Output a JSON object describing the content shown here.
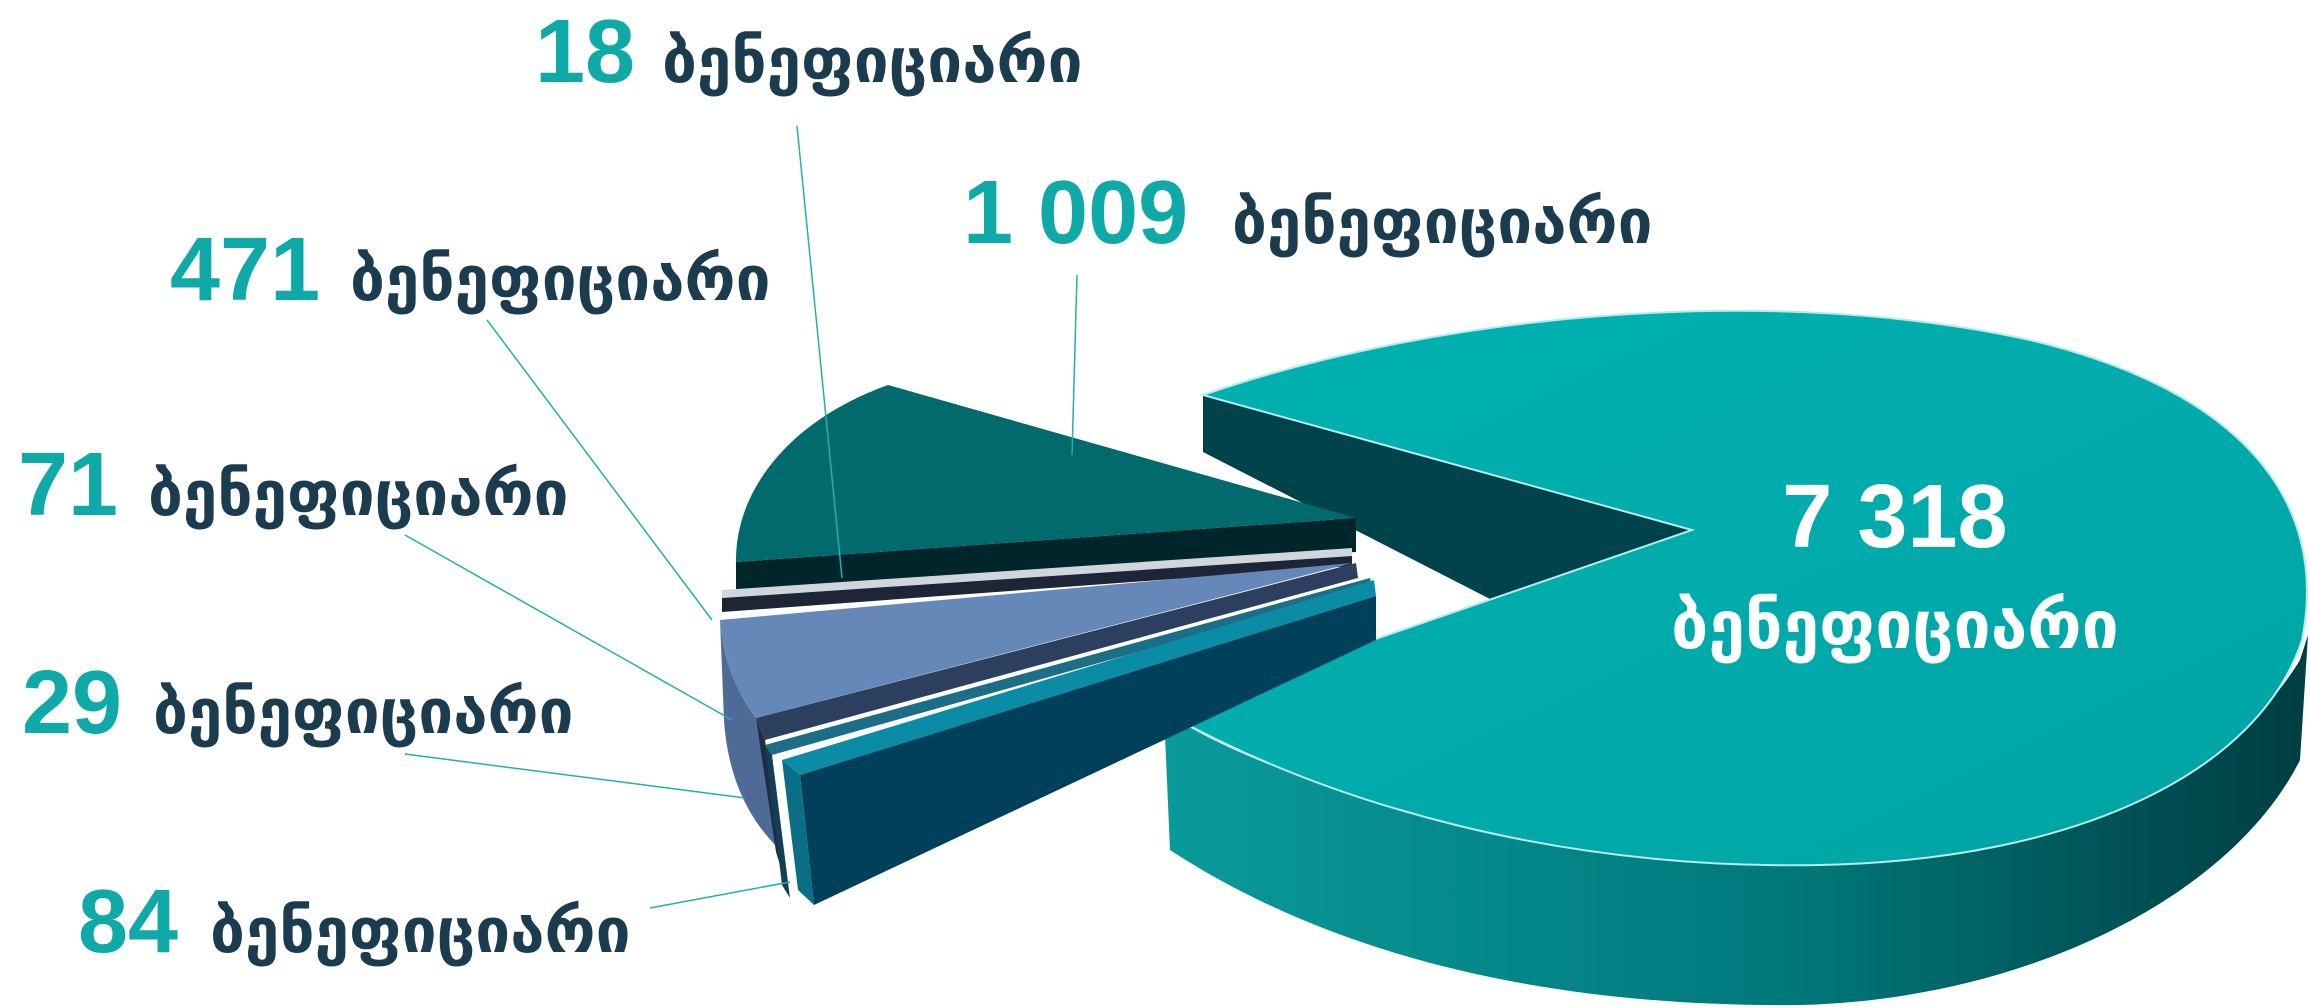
{
  "chart_data": {
    "type": "pie",
    "title": "",
    "unit_label": "ბენეფიციარი",
    "slices": [
      {
        "value": 7318,
        "value_text": "7 318",
        "label": "ბენეფიციარი",
        "color": "#00A8A8"
      },
      {
        "value": 1009,
        "value_text": "1 009",
        "label": "ბენეფიციარი",
        "color": "#006A6C"
      },
      {
        "value": 18,
        "value_text": "18",
        "label": "ბენეფიციარი",
        "color": "#D0D6DC"
      },
      {
        "value": 471,
        "value_text": "471",
        "label": "ბენეფიციარი",
        "color": "#6688B8"
      },
      {
        "value": 71,
        "value_text": "71",
        "label": "ბენეფიციარი",
        "color": "#2D3F5E"
      },
      {
        "value": 29,
        "value_text": "29",
        "label": "ბენეფიციარი",
        "color": "#1C6D86"
      },
      {
        "value": 84,
        "value_text": "84",
        "label": "ბენეფიციარი",
        "color": "#0B8CA6"
      }
    ],
    "legend": "none",
    "labels_outside": true
  }
}
